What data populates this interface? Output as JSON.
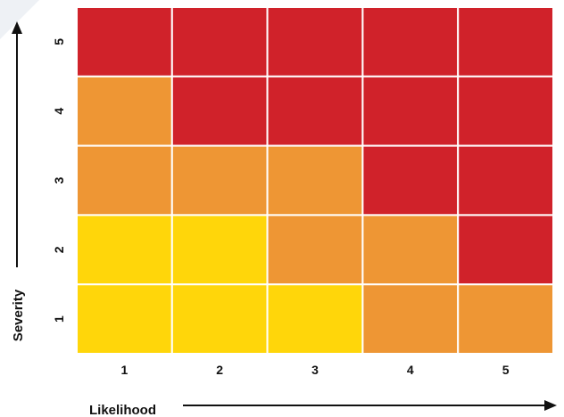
{
  "chart_data": {
    "type": "heatmap",
    "title": "",
    "xlabel": "Likelihood",
    "ylabel": "Severity",
    "x_categories": [
      "1",
      "2",
      "3",
      "4",
      "5"
    ],
    "y_categories": [
      "1",
      "2",
      "3",
      "4",
      "5"
    ],
    "levels": {
      "low": "#FFD60A",
      "medium": "#EE9634",
      "high": "#D0222A"
    },
    "cells": [
      {
        "severity": 5,
        "values": [
          "high",
          "high",
          "high",
          "high",
          "high"
        ]
      },
      {
        "severity": 4,
        "values": [
          "medium",
          "high",
          "high",
          "high",
          "high"
        ]
      },
      {
        "severity": 3,
        "values": [
          "medium",
          "medium",
          "medium",
          "high",
          "high"
        ]
      },
      {
        "severity": 2,
        "values": [
          "low",
          "low",
          "medium",
          "medium",
          "high"
        ]
      },
      {
        "severity": 1,
        "values": [
          "low",
          "low",
          "low",
          "medium",
          "medium"
        ]
      }
    ],
    "grid_line_color": "#ffffff",
    "axis_arrow_color": "#111111"
  }
}
